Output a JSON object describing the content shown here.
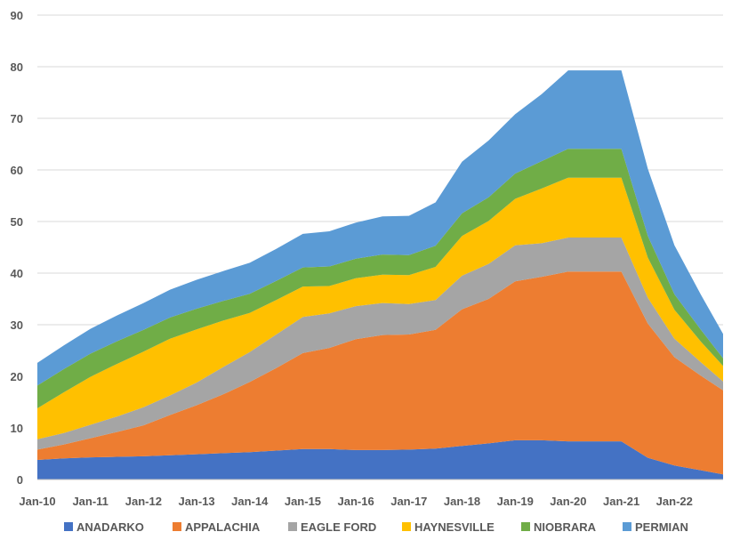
{
  "chart_data": {
    "type": "area",
    "stacked": true,
    "ylim": [
      0,
      90
    ],
    "yticks": [
      0,
      10,
      20,
      30,
      40,
      50,
      60,
      70,
      80,
      90
    ],
    "xlim": [
      "2010-01",
      "2022-12"
    ],
    "xticks": [
      "Jan-10",
      "Jan-11",
      "Jan-12",
      "Jan-13",
      "Jan-14",
      "Jan-15",
      "Jan-16",
      "Jan-17",
      "Jan-18",
      "Jan-19",
      "Jan-20",
      "Jan-21",
      "Jan-22"
    ],
    "grid": true,
    "legend_position": "bottom",
    "x": [
      "2010-01",
      "2010-07",
      "2011-01",
      "2011-07",
      "2012-01",
      "2012-07",
      "2013-01",
      "2013-07",
      "2014-01",
      "2014-07",
      "2015-01",
      "2015-07",
      "2016-01",
      "2016-07",
      "2017-01",
      "2017-07",
      "2018-01",
      "2018-07",
      "2019-01",
      "2019-07",
      "2020-01",
      "2020-07",
      "2021-01",
      "2021-07",
      "2022-01",
      "2022-07",
      "2022-12"
    ],
    "series": [
      {
        "name": "ANADARKO",
        "color": "#4472C4",
        "values": [
          3.8,
          4.1,
          4.3,
          4.4,
          4.5,
          4.7,
          4.9,
          5.1,
          5.3,
          5.6,
          5.9,
          5.9,
          5.7,
          5.7,
          5.8,
          6.0,
          6.5,
          7.0,
          7.6,
          7.6,
          7.4,
          7.4,
          7.4,
          4.2,
          2.7,
          1.8,
          1.0
        ]
      },
      {
        "name": "APPALACHIA",
        "color": "#ED7D31",
        "values": [
          2.0,
          2.7,
          3.7,
          4.8,
          6.0,
          7.8,
          9.5,
          11.4,
          13.6,
          16.0,
          18.6,
          19.6,
          21.5,
          22.3,
          22.3,
          23.0,
          26.5,
          28.0,
          30.8,
          31.7,
          32.9,
          32.9,
          32.9,
          26.0,
          21.0,
          18.3,
          16.3
        ]
      },
      {
        "name": "EAGLE FORD",
        "color": "#A5A5A5",
        "values": [
          2.0,
          2.2,
          2.6,
          3.0,
          3.5,
          3.8,
          4.4,
          5.3,
          5.8,
          6.5,
          7.0,
          6.7,
          6.4,
          6.2,
          5.9,
          5.8,
          6.5,
          6.8,
          7.0,
          6.5,
          6.6,
          6.6,
          6.6,
          5.0,
          3.6,
          2.6,
          1.7
        ]
      },
      {
        "name": "HAYNESVILLE",
        "color": "#FFC000",
        "values": [
          6.0,
          7.9,
          9.3,
          10.2,
          10.8,
          11.0,
          10.3,
          9.0,
          7.6,
          6.7,
          5.9,
          5.3,
          5.4,
          5.5,
          5.6,
          6.4,
          7.7,
          8.3,
          9.0,
          10.6,
          11.6,
          11.6,
          11.6,
          7.8,
          5.6,
          4.0,
          3.0
        ]
      },
      {
        "name": "NIOBRARA",
        "color": "#70AD47",
        "values": [
          4.4,
          4.5,
          4.5,
          4.4,
          4.2,
          4.1,
          4.0,
          3.8,
          3.7,
          3.7,
          3.7,
          3.8,
          3.8,
          3.9,
          3.9,
          4.1,
          4.4,
          4.6,
          4.9,
          5.3,
          5.6,
          5.6,
          5.6,
          4.2,
          3.0,
          2.3,
          1.5
        ]
      },
      {
        "name": "PERMIAN",
        "color": "#5B9BD5",
        "values": [
          4.4,
          4.6,
          4.8,
          5.0,
          5.2,
          5.4,
          5.6,
          5.8,
          6.0,
          6.2,
          6.5,
          6.8,
          7.0,
          7.4,
          7.6,
          8.4,
          10.0,
          11.0,
          11.5,
          13.0,
          15.2,
          15.2,
          15.2,
          13.0,
          9.5,
          6.8,
          4.7
        ]
      }
    ]
  }
}
